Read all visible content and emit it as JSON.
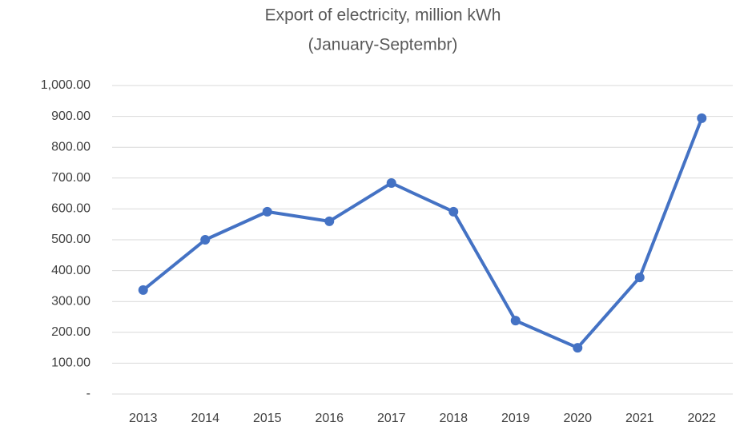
{
  "chart_data": {
    "type": "line",
    "title": "Export of electricity, million kWh",
    "subtitle": "(January-Septembr)",
    "categories": [
      "2013",
      "2014",
      "2015",
      "2016",
      "2017",
      "2018",
      "2019",
      "2020",
      "2021",
      "2022"
    ],
    "series": [
      {
        "name": "Export of electricity",
        "color": "#4472c4",
        "values": [
          337,
          500,
          591,
          560,
          684,
          591,
          238,
          150,
          378,
          894
        ]
      }
    ],
    "ylim": [
      0,
      1000
    ],
    "yticks": [
      {
        "value": 0,
        "label": "-"
      },
      {
        "value": 100,
        "label": "100.00"
      },
      {
        "value": 200,
        "label": "200.00"
      },
      {
        "value": 300,
        "label": "300.00"
      },
      {
        "value": 400,
        "label": "400.00"
      },
      {
        "value": 500,
        "label": "500.00"
      },
      {
        "value": 600,
        "label": "600.00"
      },
      {
        "value": 700,
        "label": "700.00"
      },
      {
        "value": 800,
        "label": "800.00"
      },
      {
        "value": 900,
        "label": "900.00"
      },
      {
        "value": 1000,
        "label": "1,000.00"
      }
    ],
    "grid": true
  }
}
